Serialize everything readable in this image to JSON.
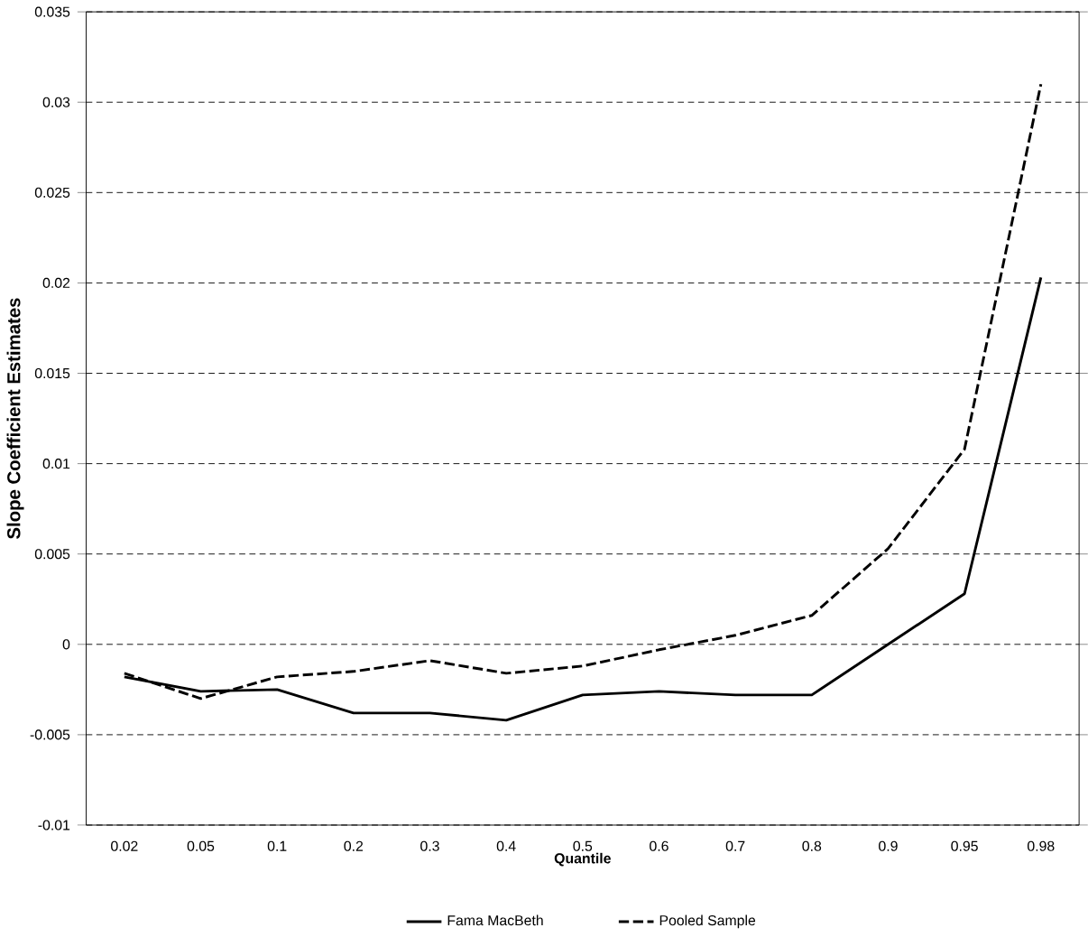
{
  "chart_data": {
    "type": "line",
    "xlabel": "Quantile",
    "ylabel": "Slope Coefficient Estimates",
    "categories": [
      "0.02",
      "0.05",
      "0.1",
      "0.2",
      "0.3",
      "0.4",
      "0.5",
      "0.6",
      "0.7",
      "0.8",
      "0.9",
      "0.95",
      "0.98"
    ],
    "ylim": [
      -0.01,
      0.035
    ],
    "yticks": [
      -0.01,
      -0.005,
      0,
      0.005,
      0.01,
      0.015,
      0.02,
      0.025,
      0.03,
      0.035
    ],
    "grid": "y",
    "legend": "bottom",
    "marker": "none",
    "series": [
      {
        "name": "Fama MacBeth",
        "color": "#000000",
        "line_style": "solid",
        "values": [
          -0.0018,
          -0.0026,
          -0.0025,
          -0.0038,
          -0.0038,
          -0.0042,
          -0.0028,
          -0.0026,
          -0.0028,
          -0.0028,
          0.0,
          0.0028,
          0.0203
        ]
      },
      {
        "name": "Pooled Sample",
        "color": "#000000",
        "line_style": "dashed",
        "values": [
          -0.0016,
          -0.003,
          -0.0018,
          -0.0015,
          -0.0009,
          -0.0016,
          -0.0012,
          -0.0003,
          0.0005,
          0.0016,
          0.0053,
          0.0108,
          0.031
        ]
      }
    ]
  }
}
